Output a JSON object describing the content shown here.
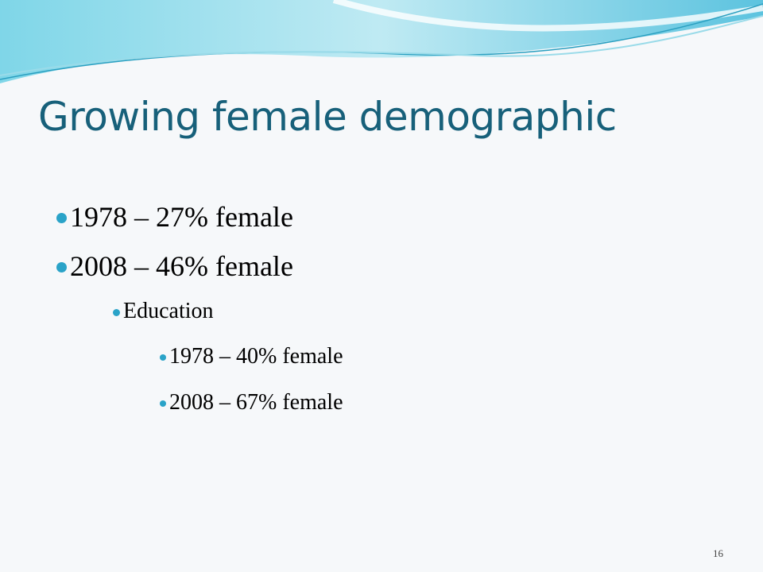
{
  "slide": {
    "title": "Growing female demographic",
    "bullets": [
      {
        "text": "1978 – 27% female"
      },
      {
        "text": "2008 – 46% female",
        "children": [
          {
            "text": "Education",
            "children": [
              {
                "text": "1978 – 40% female"
              },
              {
                "text": "2008 – 67% female"
              }
            ]
          }
        ]
      }
    ],
    "page_number": "16"
  }
}
